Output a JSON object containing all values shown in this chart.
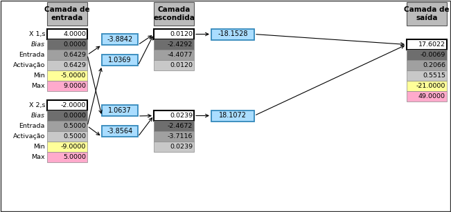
{
  "headers": {
    "entrada": "Camada de\nentrada",
    "escondida": "Camada\nescondida",
    "saida": "Camada de\nsaída"
  },
  "vals_x1": [
    "4.0000",
    "0.0000",
    "0.6429",
    "0.6429",
    "-5.0000",
    "9.0000"
  ],
  "vals_x2": [
    "-2.0000",
    "0.0000",
    "0.5000",
    "0.5000",
    "-9.0000",
    "5.0000"
  ],
  "labels_x1": [
    "X 1,s",
    "Bias",
    "Entrada",
    "Activação",
    "Min",
    "Max"
  ],
  "labels_x2": [
    "X 2,s",
    "Bias",
    "Entrada",
    "Activação",
    "Min",
    "Max"
  ],
  "italic_labels": [
    "Bias"
  ],
  "colors_in6": [
    "#ffffff",
    "#6e6e6e",
    "#a0a0a0",
    "#c8c8c8",
    "#ffff99",
    "#ffaacc"
  ],
  "colors_hid4": [
    "#ffffff",
    "#6e6e6e",
    "#a0a0a0",
    "#c8c8c8"
  ],
  "colors_out6": [
    "#ffffff",
    "#6e6e6e",
    "#a0a0a0",
    "#c8c8c8",
    "#ffff99",
    "#ffaacc"
  ],
  "w1_vals": [
    "-3.8842",
    "1.0369",
    "1.0637",
    "-3.8564"
  ],
  "vals_h1": [
    "0.0120",
    "-2.4292",
    "-4.4077",
    "0.0120"
  ],
  "vals_h2": [
    "0.0239",
    "-2.4672",
    "-3.7116",
    "0.0239"
  ],
  "w2_vals": [
    "-18.1528",
    "18.1072"
  ],
  "vals_out": [
    "17.6022",
    "-0.0069",
    "0.2066",
    "0.5515",
    "-21.0000",
    "49.0000"
  ],
  "header_bg": "#bbbbbb",
  "blue_cell": "#aaddff",
  "blue_edge": "#3388bb"
}
